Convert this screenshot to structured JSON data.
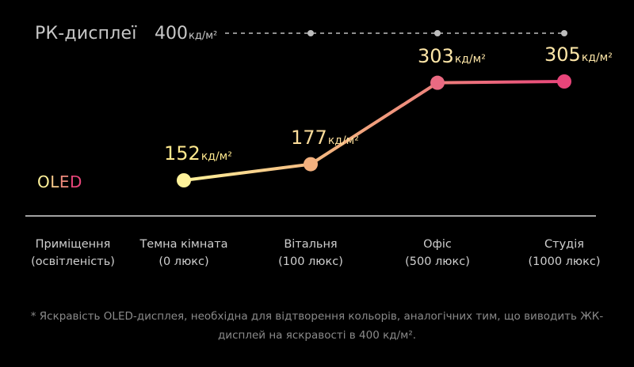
{
  "chart_data": {
    "type": "line",
    "categories": [
      {
        "name": "Темна кімната",
        "sub": "(0 люкс)"
      },
      {
        "name": "Вітальня",
        "sub": "(100 люкс)"
      },
      {
        "name": "Офіс",
        "sub": "(500 люкс)"
      },
      {
        "name": "Студія",
        "sub": "(1000 люкс)"
      }
    ],
    "axis_title": {
      "line1": "Приміщення",
      "line2": "(освітленість)"
    },
    "unit": "кд/м²",
    "lcd": {
      "name": "РК-дисплеї",
      "value": 400,
      "value_text": "400"
    },
    "oled": {
      "name": "OLED",
      "values": [
        152,
        177,
        303,
        305
      ],
      "value_texts": [
        "152",
        "177",
        "303",
        "305"
      ]
    },
    "footnote": "* Яскравість OLED-дисплея, необхідна для відтворення кольорів, аналогічних тим, що виводить ЖК-дисплей на яскравості в 400 кд/м².",
    "colors": {
      "background": "#000000",
      "lcd_line": "#bdbdbd",
      "oled_start": "#fff29a",
      "oled_mid": "#f2b07e",
      "oled_end": "#e8457a",
      "axis": "#d8d8d8"
    }
  }
}
